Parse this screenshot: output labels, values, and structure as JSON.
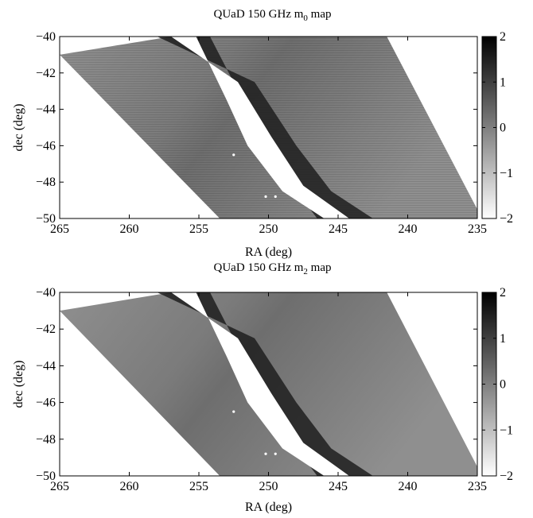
{
  "chart_data": [
    {
      "type": "heatmap",
      "title": "QUaD 150 GHz m",
      "title_subscript": "0",
      "title_suffix": " map",
      "xlabel": "RA (deg)",
      "ylabel": "dec (deg)",
      "xlim": [
        265,
        235
      ],
      "ylim": [
        -50,
        -40
      ],
      "xticks": [
        265,
        260,
        255,
        250,
        245,
        240,
        235
      ],
      "yticks": [
        -40,
        -42,
        -44,
        -46,
        -48,
        -50
      ],
      "colorbar": {
        "range": [
          -2,
          2
        ],
        "ticks": [
          2,
          1,
          0,
          -1,
          -2
        ],
        "colormap": "gray-reversed"
      },
      "band": {
        "dark_edge_color": "#1e1e1e",
        "fill_color": "#8f8f8f",
        "light_edge_color": "#bdbdbd"
      },
      "saturated_ridge": {
        "color": "#ffffff",
        "description_ra_at_dec_minus40": 256.5,
        "ra_at_dec_minus50": 245
      }
    },
    {
      "type": "heatmap",
      "title": "QUaD 150 GHz m",
      "title_subscript": "2",
      "title_suffix": " map",
      "xlabel": "RA (deg)",
      "ylabel": "dec (deg)",
      "xlim": [
        265,
        235
      ],
      "ylim": [
        -50,
        -40
      ],
      "xticks": [
        265,
        260,
        255,
        250,
        245,
        240,
        235
      ],
      "yticks": [
        -40,
        -42,
        -44,
        -46,
        -48,
        -50
      ],
      "colorbar": {
        "range": [
          -2,
          2
        ],
        "ticks": [
          2,
          1,
          0,
          -1,
          -2
        ],
        "colormap": "gray-reversed"
      },
      "band": {
        "dark_edge_color": "#1e1e1e",
        "fill_color": "#8f8f8f",
        "light_edge_color": "#bdbdbd"
      },
      "saturated_ridge": {
        "color": "#ffffff",
        "description_ra_at_dec_minus40": 256.5,
        "ra_at_dec_minus50": 245
      }
    }
  ]
}
